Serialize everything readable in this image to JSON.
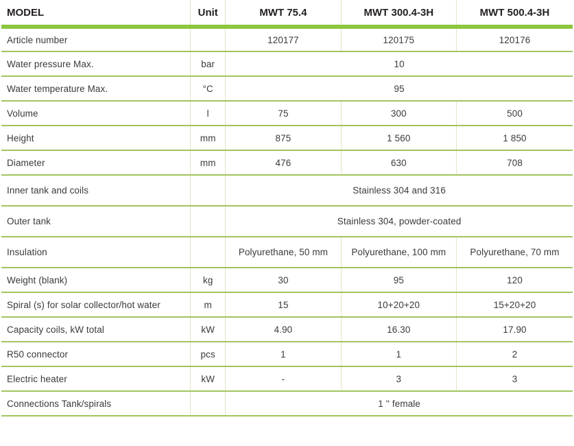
{
  "table": {
    "header": {
      "model_label": "MODEL",
      "unit_label": "Unit",
      "columns": [
        "MWT 75.4",
        "MWT 300.4-3H",
        "MWT 500.4-3H"
      ]
    },
    "rows": [
      {
        "label": "Article number",
        "unit": "",
        "values": [
          "120177",
          "120175",
          "120176"
        ]
      },
      {
        "label": "Water pressure Max.",
        "unit": "bar",
        "merged": true,
        "value": "10"
      },
      {
        "label": "Water temperature Max.",
        "unit": "°C",
        "merged": true,
        "value": "95"
      },
      {
        "label": "Volume",
        "unit": "l",
        "values": [
          "75",
          "300",
          "500"
        ]
      },
      {
        "label": "Height",
        "unit": "mm",
        "values": [
          "875",
          "1 560",
          "1 850"
        ]
      },
      {
        "label": "Diameter",
        "unit": "mm",
        "values": [
          "476",
          "630",
          "708"
        ]
      },
      {
        "label": "Inner tank and coils",
        "unit": "",
        "merged": true,
        "value": "Stainless 304 and 316",
        "tall": true
      },
      {
        "label": "Outer tank",
        "unit": "",
        "merged": true,
        "value": "Stainless 304, powder-coated",
        "tall": true
      },
      {
        "label": "Insulation",
        "unit": "",
        "values": [
          "Polyurethane, 50 mm",
          "Polyurethane, 100 mm",
          "Polyurethane, 70 mm"
        ],
        "tall": true
      },
      {
        "label": "Weight (blank)",
        "unit": "kg",
        "values": [
          "30",
          "95",
          "120"
        ]
      },
      {
        "label": "Spiral (s) for solar collector/hot water",
        "unit": "m",
        "values": [
          "15",
          "10+20+20",
          "15+20+20"
        ]
      },
      {
        "label": "Capacity coils, kW total",
        "unit": "kW",
        "values": [
          "4.90",
          "16.30",
          "17.90"
        ]
      },
      {
        "label": "R50 connector",
        "unit": "pcs",
        "values": [
          "1",
          "1",
          "2"
        ]
      },
      {
        "label": "Electric heater",
        "unit": "kW",
        "values": [
          "-",
          "3",
          "3"
        ]
      },
      {
        "label": "Connections Tank/spirals",
        "unit": "",
        "merged": true,
        "value": "1 '' female"
      }
    ]
  },
  "colors": {
    "accent_green": "#8dc63f",
    "row_line": "#a2c45e",
    "column_line": "#dce8c2",
    "header_text": "#231f20",
    "body_text": "#3a3a3a"
  }
}
